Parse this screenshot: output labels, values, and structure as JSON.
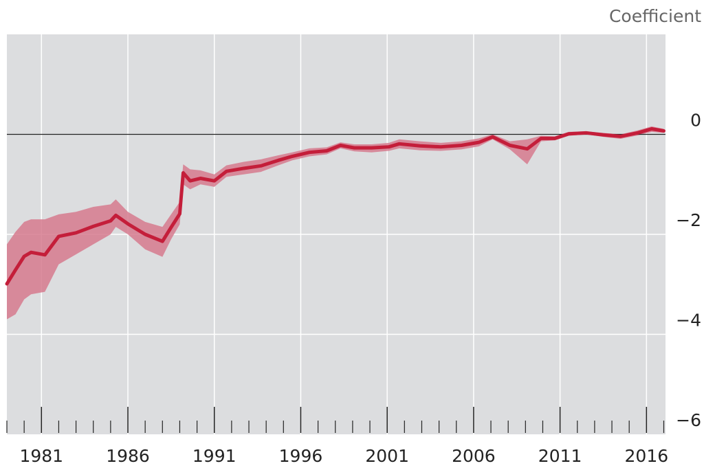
{
  "chart_data": {
    "type": "line",
    "y_label": "Coefficient",
    "x": [
      1979.0,
      1979.5,
      1980.0,
      1980.4,
      1981.2,
      1982.0,
      1983.0,
      1984.0,
      1985.0,
      1985.3,
      1986.0,
      1987.0,
      1988.0,
      1988.5,
      1989.0,
      1989.2,
      1989.6,
      1990.2,
      1991.0,
      1991.7,
      1992.7,
      1993.7,
      1994.7,
      1995.5,
      1996.5,
      1997.5,
      1998.3,
      1999.1,
      2000.1,
      2001.1,
      2001.7,
      2002.9,
      2004.1,
      2005.3,
      2006.3,
      2007.1,
      2008.1,
      2009.1,
      2009.9,
      2010.7,
      2011.5,
      2012.5,
      2013.5,
      2014.5,
      2015.5,
      2016.3,
      2017.0
    ],
    "series": [
      {
        "color": "#c41e3a",
        "band_color": "#d67a8e",
        "values": [
          -2.99,
          -2.71,
          -2.44,
          -2.36,
          -2.41,
          -2.04,
          -1.97,
          -1.84,
          -1.73,
          -1.62,
          -1.79,
          -2.0,
          -2.14,
          -1.86,
          -1.59,
          -0.77,
          -0.93,
          -0.88,
          -0.93,
          -0.74,
          -0.68,
          -0.63,
          -0.52,
          -0.44,
          -0.36,
          -0.33,
          -0.22,
          -0.27,
          -0.27,
          -0.25,
          -0.19,
          -0.23,
          -0.25,
          -0.22,
          -0.16,
          -0.05,
          -0.22,
          -0.29,
          -0.08,
          -0.08,
          0.01,
          0.03,
          -0.01,
          -0.04,
          0.03,
          0.11,
          0.07
        ],
        "lower": [
          -3.7,
          -3.6,
          -3.3,
          -3.2,
          -3.15,
          -2.6,
          -2.4,
          -2.2,
          -2.0,
          -1.85,
          -2.0,
          -2.3,
          -2.45,
          -2.1,
          -1.8,
          -1.0,
          -1.1,
          -1.0,
          -1.05,
          -0.85,
          -0.8,
          -0.75,
          -0.62,
          -0.52,
          -0.44,
          -0.4,
          -0.28,
          -0.34,
          -0.36,
          -0.33,
          -0.28,
          -0.32,
          -0.33,
          -0.3,
          -0.24,
          -0.1,
          -0.3,
          -0.6,
          -0.14,
          -0.12,
          -0.03,
          0.0,
          -0.05,
          -0.09,
          -0.02,
          0.05,
          0.03
        ],
        "upper": [
          -2.2,
          -1.95,
          -1.75,
          -1.7,
          -1.7,
          -1.6,
          -1.55,
          -1.45,
          -1.4,
          -1.3,
          -1.55,
          -1.75,
          -1.85,
          -1.6,
          -1.35,
          -0.6,
          -0.7,
          -0.72,
          -0.8,
          -0.62,
          -0.55,
          -0.5,
          -0.42,
          -0.36,
          -0.28,
          -0.26,
          -0.16,
          -0.2,
          -0.2,
          -0.17,
          -0.1,
          -0.14,
          -0.17,
          -0.14,
          -0.08,
          0.0,
          -0.14,
          -0.1,
          -0.03,
          -0.04,
          0.05,
          0.06,
          0.03,
          0.0,
          0.08,
          0.16,
          0.11
        ]
      }
    ],
    "xlim": [
      1979,
      2017.1
    ],
    "xticks": [
      1981,
      1986,
      1991,
      1996,
      2001,
      2006,
      2011,
      2016
    ],
    "xticks_minor": [
      1979,
      1980,
      1982,
      1983,
      1984,
      1985,
      1987,
      1988,
      1989,
      1990,
      1992,
      1993,
      1994,
      1995,
      1997,
      1998,
      1999,
      2000,
      2002,
      2003,
      2004,
      2005,
      2007,
      2008,
      2009,
      2010,
      2012,
      2013,
      2014,
      2015,
      2017
    ],
    "ylim": [
      -6,
      2
    ],
    "yticks": [
      {
        "value": 0,
        "label": "0"
      },
      {
        "value": -2,
        "label": "−2"
      },
      {
        "value": -4,
        "label": "−4"
      },
      {
        "value": -6,
        "label": "−6"
      }
    ],
    "grid": true
  }
}
